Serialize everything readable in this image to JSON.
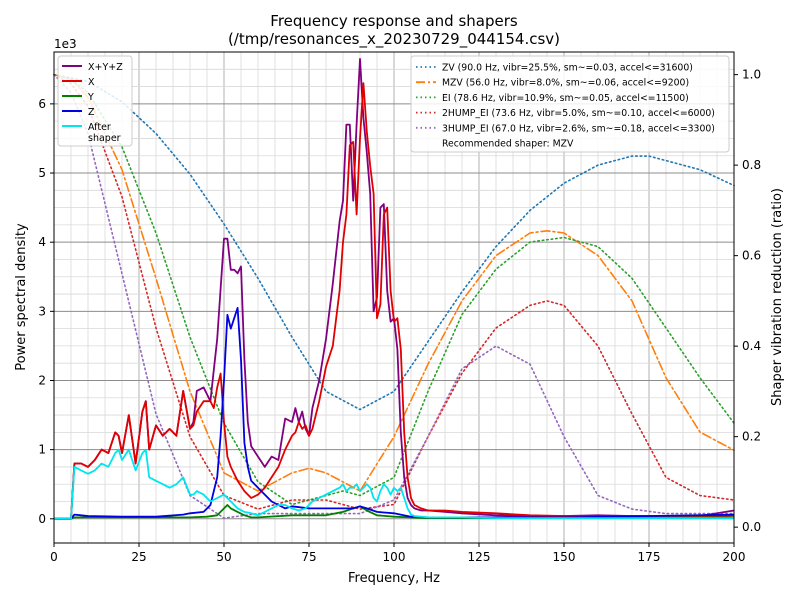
{
  "chart_data": {
    "type": "line",
    "title": "Frequency response and shapers",
    "subtitle": "(/tmp/resonances_x_20230729_044154.csv)",
    "xlabel": "Frequency, Hz",
    "ylabel": "Power spectral density",
    "y2label": "Shaper vibration reduction (ratio)",
    "y_exponent_label": "1e3",
    "xlim": [
      0,
      200
    ],
    "ylim": [
      -0.35,
      6.75
    ],
    "y2lim": [
      -0.035,
      1.05
    ],
    "xticks": [
      0,
      25,
      50,
      75,
      100,
      125,
      150,
      175,
      200
    ],
    "yticks": [
      0,
      1,
      2,
      3,
      4,
      5,
      6
    ],
    "y2ticks": [
      0.0,
      0.2,
      0.4,
      0.6,
      0.8,
      1.0
    ],
    "grid": true,
    "psd_legend_position": "top-left",
    "shaper_legend_position": "top-right",
    "psd_series": [
      {
        "name": "X+Y+Z",
        "color": "#800080",
        "x": [
          0,
          5,
          6,
          8,
          10,
          12,
          14,
          16,
          18,
          19,
          20,
          22,
          24,
          26,
          27,
          28,
          30,
          32,
          34,
          36,
          38,
          40,
          41,
          42,
          44,
          46,
          48,
          50,
          51,
          52,
          53,
          54,
          55,
          56,
          57,
          58,
          60,
          62,
          64,
          66,
          68,
          70,
          71,
          72,
          73,
          74,
          75,
          76,
          78,
          80,
          82,
          84,
          85,
          86,
          87,
          88,
          89,
          90,
          91,
          92,
          93,
          94,
          95,
          96,
          97,
          98,
          99,
          100,
          101,
          102,
          103,
          104,
          105,
          106,
          108,
          110,
          115,
          120,
          130,
          140,
          150,
          160,
          170,
          180,
          190,
          200
        ],
        "y": [
          0,
          0,
          0.8,
          0.8,
          0.75,
          0.85,
          1.0,
          0.95,
          1.25,
          1.2,
          0.95,
          1.5,
          0.8,
          1.55,
          1.7,
          1.0,
          1.35,
          1.2,
          1.3,
          1.2,
          1.85,
          1.3,
          1.4,
          1.85,
          1.9,
          1.7,
          2.6,
          4.05,
          4.05,
          3.6,
          3.6,
          3.55,
          3.65,
          2.3,
          1.4,
          1.05,
          0.9,
          0.75,
          0.9,
          0.85,
          1.45,
          1.4,
          1.6,
          1.4,
          1.55,
          1.3,
          1.2,
          1.6,
          2.0,
          2.6,
          3.4,
          4.3,
          4.6,
          5.7,
          5.7,
          4.6,
          5.7,
          6.65,
          5.8,
          5.3,
          4.7,
          3.0,
          3.2,
          4.5,
          4.55,
          3.3,
          2.85,
          2.9,
          2.45,
          1.25,
          0.6,
          0.3,
          0.2,
          0.15,
          0.12,
          0.12,
          0.1,
          0.08,
          0.05,
          0.04,
          0.04,
          0.05,
          0.04,
          0.04,
          0.04,
          0.12
        ]
      },
      {
        "name": "X",
        "color": "#e00000",
        "x": [
          0,
          5,
          6,
          8,
          10,
          12,
          14,
          16,
          18,
          19,
          20,
          22,
          24,
          26,
          27,
          28,
          30,
          32,
          34,
          36,
          38,
          40,
          41,
          42,
          44,
          46,
          47,
          48,
          49,
          50,
          51,
          52,
          54,
          56,
          58,
          60,
          62,
          64,
          66,
          68,
          70,
          71,
          72,
          73,
          74,
          75,
          76,
          78,
          80,
          82,
          84,
          85,
          86,
          87,
          88,
          89,
          90,
          91,
          92,
          93,
          94,
          95,
          96,
          97,
          98,
          99,
          100,
          101,
          102,
          103,
          104,
          105,
          106,
          108,
          110,
          115,
          120,
          130,
          140,
          150,
          160,
          170,
          180,
          190,
          200
        ],
        "y": [
          0,
          0,
          0.8,
          0.8,
          0.75,
          0.85,
          1.0,
          0.95,
          1.25,
          1.2,
          0.95,
          1.5,
          0.8,
          1.55,
          1.7,
          1.0,
          1.35,
          1.2,
          1.3,
          1.2,
          1.85,
          1.3,
          1.35,
          1.55,
          1.7,
          1.7,
          1.6,
          1.9,
          2.1,
          1.4,
          0.9,
          0.75,
          0.55,
          0.4,
          0.3,
          0.35,
          0.45,
          0.6,
          0.75,
          1.0,
          1.2,
          1.25,
          1.4,
          1.3,
          1.35,
          1.2,
          1.3,
          1.7,
          2.2,
          2.5,
          3.3,
          4.0,
          4.4,
          5.4,
          5.45,
          4.4,
          5.5,
          6.3,
          5.6,
          5.1,
          4.7,
          2.9,
          3.1,
          4.4,
          4.5,
          3.3,
          2.85,
          2.9,
          2.45,
          1.25,
          0.6,
          0.3,
          0.2,
          0.15,
          0.12,
          0.12,
          0.1,
          0.08,
          0.05,
          0.04,
          0.03,
          0.04,
          0.03,
          0.03,
          0.05
        ]
      },
      {
        "name": "Y",
        "color": "#008000",
        "x": [
          0,
          5,
          6,
          10,
          20,
          30,
          40,
          45,
          48,
          50,
          51,
          52,
          54,
          56,
          58,
          60,
          70,
          80,
          85,
          88,
          90,
          92,
          95,
          100,
          105,
          110,
          150,
          200
        ],
        "y": [
          0,
          0,
          0.02,
          0.02,
          0.02,
          0.02,
          0.02,
          0.03,
          0.05,
          0.15,
          0.2,
          0.15,
          0.1,
          0.05,
          0.02,
          0.02,
          0.05,
          0.05,
          0.1,
          0.15,
          0.18,
          0.12,
          0.05,
          0.03,
          0.02,
          0.01,
          0.01,
          0.02
        ]
      },
      {
        "name": "Z",
        "color": "#0000e0",
        "x": [
          0,
          5,
          6,
          8,
          10,
          20,
          30,
          38,
          40,
          44,
          46,
          48,
          49,
          50,
          51,
          52,
          53,
          54,
          55,
          56,
          57,
          58,
          60,
          62,
          64,
          66,
          68,
          70,
          75,
          80,
          85,
          88,
          90,
          92,
          95,
          100,
          105,
          110,
          150,
          200
        ],
        "y": [
          0,
          0,
          0.06,
          0.05,
          0.04,
          0.03,
          0.03,
          0.06,
          0.08,
          0.1,
          0.2,
          0.6,
          1.2,
          2.0,
          2.95,
          2.75,
          2.9,
          3.05,
          2.3,
          1.1,
          0.75,
          0.55,
          0.45,
          0.35,
          0.25,
          0.2,
          0.15,
          0.18,
          0.15,
          0.15,
          0.15,
          0.15,
          0.18,
          0.15,
          0.1,
          0.08,
          0.03,
          0.02,
          0.02,
          0.06
        ]
      },
      {
        "name": "After\nshaper",
        "color": "#00e5ee",
        "x": [
          0,
          5,
          6,
          8,
          10,
          12,
          14,
          16,
          18,
          19,
          20,
          22,
          24,
          26,
          27,
          28,
          30,
          32,
          34,
          36,
          38,
          40,
          41,
          42,
          44,
          46,
          48,
          50,
          52,
          54,
          56,
          58,
          60,
          62,
          64,
          66,
          68,
          70,
          72,
          74,
          76,
          78,
          80,
          82,
          84,
          85,
          86,
          87,
          88,
          89,
          90,
          91,
          92,
          93,
          94,
          95,
          96,
          97,
          98,
          99,
          100,
          101,
          102,
          103,
          104,
          105,
          106,
          110,
          120,
          130,
          150,
          175,
          200
        ],
        "y": [
          0,
          0,
          0.75,
          0.7,
          0.65,
          0.7,
          0.8,
          0.75,
          0.95,
          1.0,
          0.85,
          1.0,
          0.7,
          0.95,
          1.0,
          0.6,
          0.55,
          0.5,
          0.45,
          0.5,
          0.6,
          0.35,
          0.35,
          0.4,
          0.35,
          0.25,
          0.3,
          0.35,
          0.25,
          0.15,
          0.1,
          0.08,
          0.05,
          0.1,
          0.15,
          0.2,
          0.2,
          0.15,
          0.12,
          0.15,
          0.25,
          0.3,
          0.35,
          0.4,
          0.45,
          0.5,
          0.4,
          0.45,
          0.45,
          0.5,
          0.4,
          0.45,
          0.5,
          0.45,
          0.3,
          0.25,
          0.4,
          0.5,
          0.45,
          0.35,
          0.45,
          0.4,
          0.45,
          0.3,
          0.15,
          0.06,
          0.04,
          0.02,
          0.02,
          0.01,
          0.01,
          0.01,
          0.01
        ]
      }
    ],
    "shaper_series": [
      {
        "name": "ZV (90.0 Hz, vibr=25.5%, sm~=0.03, accel<=31600)",
        "color": "#1f77b4",
        "dash": "dotted",
        "x": [
          0,
          10,
          20,
          30,
          40,
          50,
          60,
          70,
          80,
          90,
          100,
          110,
          120,
          130,
          140,
          150,
          160,
          170,
          175,
          180,
          190,
          200
        ],
        "y": [
          1.0,
          0.985,
          0.94,
          0.87,
          0.78,
          0.67,
          0.55,
          0.42,
          0.3,
          0.26,
          0.3,
          0.41,
          0.52,
          0.62,
          0.7,
          0.76,
          0.8,
          0.82,
          0.82,
          0.81,
          0.79,
          0.755
        ]
      },
      {
        "name": "MZV (56.0 Hz, vibr=8.0%, sm~=0.06, accel<=9200)",
        "color": "#ff7f0e",
        "dash": "dashdot",
        "x": [
          0,
          5,
          10,
          20,
          30,
          40,
          50,
          60,
          70,
          75,
          80,
          90,
          100,
          110,
          120,
          130,
          140,
          145,
          150,
          160,
          170,
          180,
          190,
          200
        ],
        "y": [
          1.0,
          0.99,
          0.95,
          0.79,
          0.55,
          0.3,
          0.12,
          0.08,
          0.12,
          0.13,
          0.12,
          0.08,
          0.2,
          0.36,
          0.5,
          0.6,
          0.65,
          0.655,
          0.65,
          0.6,
          0.5,
          0.33,
          0.21,
          0.17
        ]
      },
      {
        "name": "EI (78.6 Hz, vibr=10.9%, sm~=0.05, accel<=11500)",
        "color": "#2ca02c",
        "dash": "dotted",
        "x": [
          0,
          5,
          10,
          20,
          30,
          40,
          50,
          60,
          70,
          80,
          85,
          90,
          100,
          110,
          120,
          130,
          140,
          150,
          160,
          170,
          180,
          190,
          200
        ],
        "y": [
          1.0,
          0.99,
          0.96,
          0.84,
          0.65,
          0.42,
          0.23,
          0.1,
          0.05,
          0.07,
          0.08,
          0.07,
          0.11,
          0.3,
          0.47,
          0.57,
          0.63,
          0.64,
          0.62,
          0.55,
          0.44,
          0.33,
          0.23
        ]
      },
      {
        "name": "2HUMP_EI (73.6 Hz, vibr=5.0%, sm~=0.10, accel<=6000)",
        "color": "#d62728",
        "dash": "dotted",
        "x": [
          0,
          5,
          10,
          20,
          30,
          40,
          50,
          60,
          70,
          80,
          90,
          100,
          110,
          120,
          130,
          140,
          145,
          150,
          160,
          170,
          180,
          190,
          200
        ],
        "y": [
          1.0,
          0.98,
          0.93,
          0.73,
          0.44,
          0.2,
          0.07,
          0.04,
          0.06,
          0.06,
          0.04,
          0.05,
          0.2,
          0.34,
          0.44,
          0.49,
          0.5,
          0.49,
          0.4,
          0.25,
          0.11,
          0.07,
          0.06
        ]
      },
      {
        "name": "3HUMP_EI (67.0 Hz, vibr=2.6%, sm~=0.18, accel<=3300)",
        "color": "#9467bd",
        "dash": "dotted",
        "x": [
          0,
          5,
          10,
          20,
          30,
          40,
          50,
          60,
          70,
          80,
          90,
          100,
          110,
          120,
          130,
          140,
          150,
          160,
          170,
          180,
          190,
          200
        ],
        "y": [
          1.0,
          0.96,
          0.87,
          0.56,
          0.25,
          0.07,
          0.02,
          0.03,
          0.03,
          0.03,
          0.03,
          0.06,
          0.2,
          0.35,
          0.4,
          0.36,
          0.2,
          0.07,
          0.04,
          0.03,
          0.03,
          0.03
        ]
      }
    ],
    "legend_note": "Recommended shaper: MZV"
  }
}
